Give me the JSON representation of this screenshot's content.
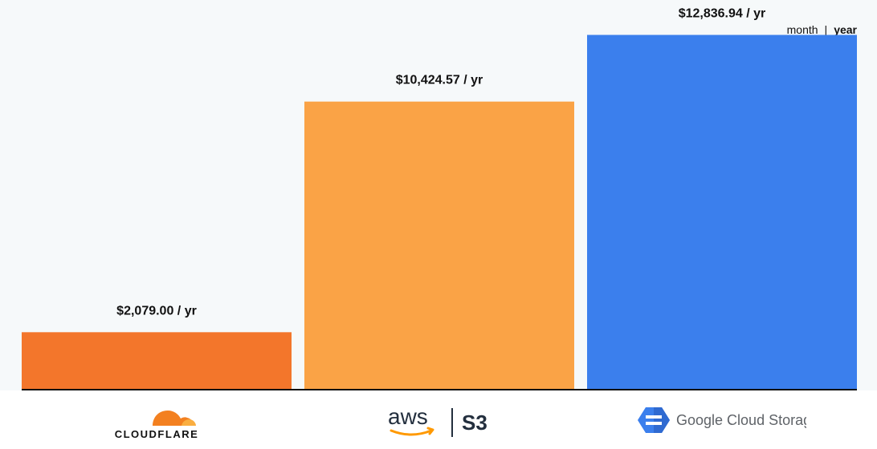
{
  "toggle": {
    "month_label": "month",
    "separator": "|",
    "year_label": "year",
    "selected": "year"
  },
  "logos": {
    "cloudflare": {
      "wordmark": "CLOUDFLARE",
      "color": "#f38020"
    },
    "aws": {
      "wordmark": "aws",
      "product": "S3"
    },
    "gcs": {
      "wordmark": "Google Cloud Storage",
      "icon": "google-cloud-storage-icon"
    }
  },
  "chart_data": {
    "type": "bar",
    "categories": [
      "Cloudflare",
      "AWS S3",
      "Google Cloud Storage"
    ],
    "values": [
      2079.0,
      10424.57,
      12836.94
    ],
    "data_labels": [
      "$2,079.00 / yr",
      "$10,424.57 / yr",
      "$12,836.94 / yr"
    ],
    "colors": [
      "#f3762b",
      "#faa346",
      "#3b7fed"
    ],
    "ylim": [
      0,
      14100
    ],
    "grid": false,
    "legend": "none",
    "title": "",
    "xlabel": "",
    "ylabel": ""
  }
}
